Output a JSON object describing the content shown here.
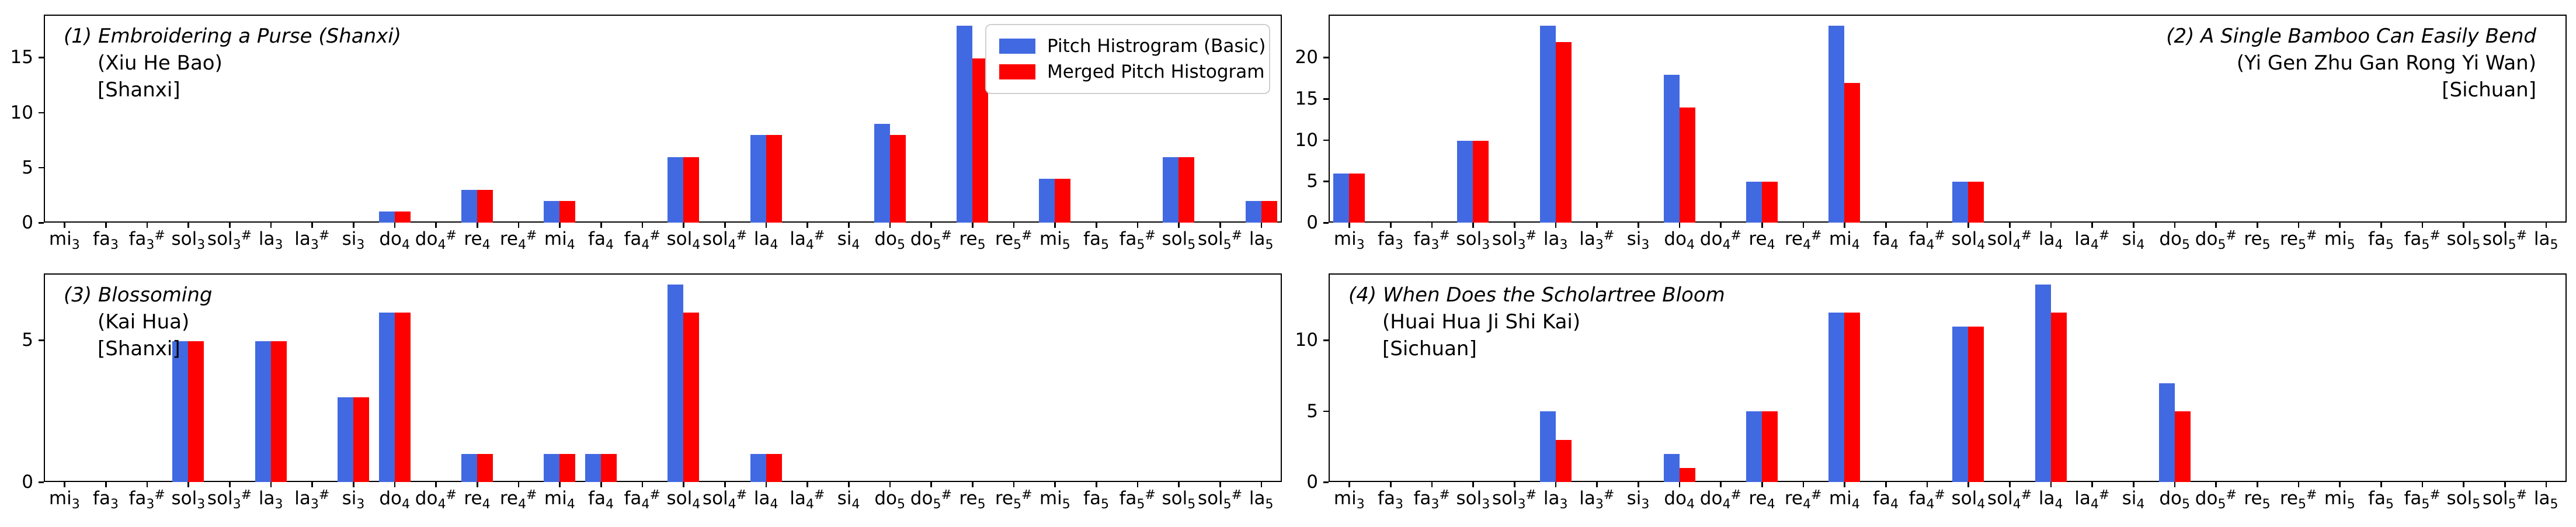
{
  "legend": {
    "items": [
      {
        "label": "Pitch Histrogram (Basic)",
        "color": "#4169e1"
      },
      {
        "label": "Merged Pitch Histogram",
        "color": "#ff0000"
      }
    ],
    "border_color": "#cfcfcf",
    "position": "upper right of subplot 1"
  },
  "chart_data": {
    "type": "bar",
    "grid": false,
    "spine_color": "#000000",
    "categories": [
      "mi3",
      "fa3",
      "fa3#",
      "sol3",
      "sol3#",
      "la3",
      "la3#",
      "si3",
      "do4",
      "do4#",
      "re4",
      "re4#",
      "mi4",
      "fa4",
      "fa4#",
      "sol4",
      "sol4#",
      "la4",
      "la4#",
      "si4",
      "do5",
      "do5#",
      "re5",
      "re5#",
      "mi5",
      "fa5",
      "fa5#",
      "sol5",
      "sol5#",
      "la5"
    ],
    "series_names": [
      "Pitch Histrogram (Basic)",
      "Merged Pitch Histogram"
    ],
    "series_colors": [
      "#4169e1",
      "#ff0000"
    ],
    "subplots": [
      {
        "title_lines": [
          {
            "text": "(1) Embroidering a Purse (Shanxi)",
            "italic": true
          },
          {
            "text": "(Xiu He Bao)",
            "italic": false
          },
          {
            "text": "[Shanxi]",
            "italic": false
          }
        ],
        "title_align": "left",
        "yticks": [
          0,
          5,
          10,
          15
        ],
        "ylim": [
          0,
          18.9
        ],
        "series": [
          {
            "name": "Pitch Histrogram (Basic)",
            "values": [
              0,
              0,
              0,
              0,
              0,
              0,
              0,
              0,
              1,
              0,
              3,
              0,
              2,
              0,
              0,
              6,
              0,
              8,
              0,
              0,
              9,
              0,
              18,
              0,
              4,
              0,
              0,
              6,
              0,
              2
            ]
          },
          {
            "name": "Merged Pitch Histogram",
            "values": [
              0,
              0,
              0,
              0,
              0,
              0,
              0,
              0,
              1,
              0,
              3,
              0,
              2,
              0,
              0,
              6,
              0,
              8,
              0,
              0,
              8,
              0,
              15,
              0,
              4,
              0,
              0,
              6,
              0,
              2
            ]
          }
        ]
      },
      {
        "title_lines": [
          {
            "text": "(2) A Single Bamboo Can Easily Bend",
            "italic": true
          },
          {
            "text": "(Yi Gen Zhu Gan Rong Yi Wan)",
            "italic": false
          },
          {
            "text": "[Sichuan]",
            "italic": false
          }
        ],
        "title_align": "right",
        "yticks": [
          0,
          5,
          10,
          15,
          20
        ],
        "ylim": [
          0,
          25.2
        ],
        "series": [
          {
            "name": "Pitch Histrogram (Basic)",
            "values": [
              6,
              0,
              0,
              10,
              0,
              24,
              0,
              0,
              18,
              0,
              5,
              0,
              24,
              0,
              0,
              5,
              0,
              0,
              0,
              0,
              0,
              0,
              0,
              0,
              0,
              0,
              0,
              0,
              0,
              0
            ]
          },
          {
            "name": "Merged Pitch Histogram",
            "values": [
              6,
              0,
              0,
              10,
              0,
              22,
              0,
              0,
              14,
              0,
              5,
              0,
              17,
              0,
              0,
              5,
              0,
              0,
              0,
              0,
              0,
              0,
              0,
              0,
              0,
              0,
              0,
              0,
              0,
              0
            ]
          }
        ]
      },
      {
        "title_lines": [
          {
            "text": "(3) Blossoming",
            "italic": true
          },
          {
            "text": "(Kai Hua)",
            "italic": false
          },
          {
            "text": "[Shanxi]",
            "italic": false
          }
        ],
        "title_align": "left",
        "yticks": [
          0,
          5
        ],
        "ylim": [
          0,
          7.35
        ],
        "series": [
          {
            "name": "Pitch Histrogram (Basic)",
            "values": [
              0,
              0,
              0,
              5,
              0,
              5,
              0,
              3,
              6,
              0,
              1,
              0,
              1,
              1,
              0,
              7,
              0,
              1,
              0,
              0,
              0,
              0,
              0,
              0,
              0,
              0,
              0,
              0,
              0,
              0
            ]
          },
          {
            "name": "Merged Pitch Histogram",
            "values": [
              0,
              0,
              0,
              5,
              0,
              5,
              0,
              3,
              6,
              0,
              1,
              0,
              1,
              1,
              0,
              6,
              0,
              1,
              0,
              0,
              0,
              0,
              0,
              0,
              0,
              0,
              0,
              0,
              0,
              0
            ]
          }
        ]
      },
      {
        "title_lines": [
          {
            "text": "(4) When Does the Scholartree Bloom",
            "italic": true
          },
          {
            "text": "(Huai Hua Ji Shi Kai)",
            "italic": false
          },
          {
            "text": "[Sichuan]",
            "italic": false
          }
        ],
        "title_align": "left",
        "yticks": [
          0,
          5,
          10
        ],
        "ylim": [
          0,
          14.7
        ],
        "series": [
          {
            "name": "Pitch Histrogram (Basic)",
            "values": [
              0,
              0,
              0,
              0,
              0,
              5,
              0,
              0,
              2,
              0,
              5,
              0,
              12,
              0,
              0,
              11,
              0,
              14,
              0,
              0,
              7,
              0,
              0,
              0,
              0,
              0,
              0,
              0,
              0,
              0
            ]
          },
          {
            "name": "Merged Pitch Histogram",
            "values": [
              0,
              0,
              0,
              0,
              0,
              3,
              0,
              0,
              1,
              0,
              5,
              0,
              12,
              0,
              0,
              11,
              0,
              12,
              0,
              0,
              5,
              0,
              0,
              0,
              0,
              0,
              0,
              0,
              0,
              0
            ]
          }
        ]
      }
    ]
  }
}
